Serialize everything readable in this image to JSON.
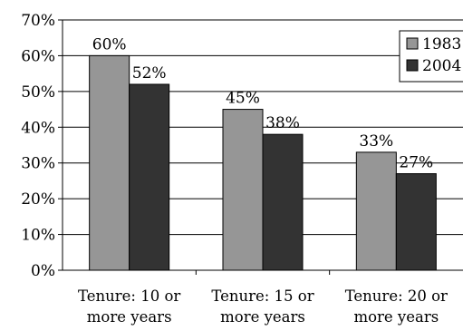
{
  "chart_data": {
    "type": "bar",
    "categories": [
      [
        "Tenure: 10 or",
        "more years"
      ],
      [
        "Tenure: 15 or",
        "more years"
      ],
      [
        "Tenure: 20 or",
        "more years"
      ]
    ],
    "series": [
      {
        "name": "1983",
        "color": "#969696",
        "values": [
          60,
          45,
          33
        ],
        "labels": [
          "60%",
          "45%",
          "33%"
        ]
      },
      {
        "name": "2004",
        "color": "#333333",
        "values": [
          52,
          38,
          27
        ],
        "labels": [
          "52%",
          "38%",
          "27%"
        ]
      }
    ],
    "y_ticks": [
      0,
      10,
      20,
      30,
      40,
      50,
      60,
      70
    ],
    "y_tick_labels": [
      "0%",
      "10%",
      "20%",
      "30%",
      "40%",
      "50%",
      "60%",
      "70%"
    ],
    "ylim": [
      0,
      70
    ],
    "grid": true,
    "legend_position": "top-right"
  }
}
